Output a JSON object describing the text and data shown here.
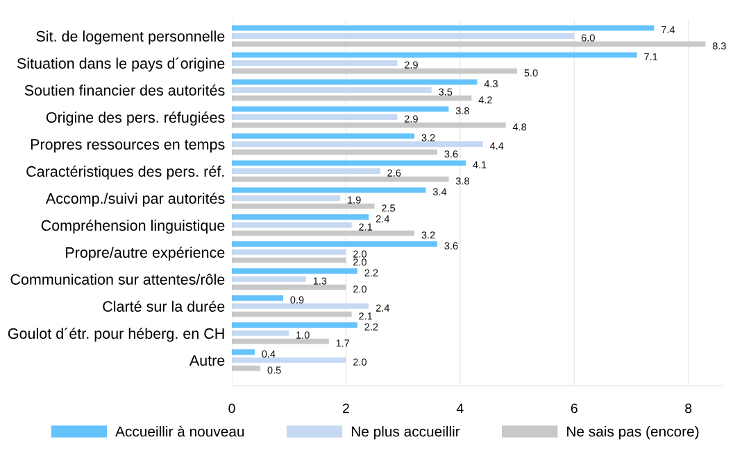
{
  "chart_data": {
    "type": "bar",
    "orientation": "horizontal",
    "categories": [
      "Sit. de logement personnelle",
      "Situation dans le pays d´origine",
      "Soutien financier des autorités",
      "Origine des pers. réfugiées",
      "Propres ressources en temps",
      "Caractéristiques des pers. réf.",
      "Accomp./suivi par autorités",
      "Compréhension linguistique",
      "Propre/autre expérience",
      "Communication sur attentes/rôle",
      "Clarté sur la durée",
      "Goulot d´étr. pour héberg. en CH",
      "Autre"
    ],
    "series": [
      {
        "name": "Accueillir à nouveau",
        "color": "#65c3fb",
        "values": [
          7.4,
          7.1,
          4.3,
          3.8,
          3.2,
          4.1,
          3.4,
          2.4,
          3.6,
          2.2,
          0.9,
          2.2,
          0.4
        ],
        "value_labels": [
          "7.4",
          "7.1",
          "4.3",
          "3.8",
          "3.2",
          "4.1",
          "3.4",
          "2.4",
          "3.6",
          "2.2",
          "0.9",
          "2.2",
          "0.4"
        ]
      },
      {
        "name": "Ne plus accueillir",
        "color": "#c6d9f2",
        "values": [
          6.0,
          2.9,
          3.5,
          2.9,
          4.4,
          2.6,
          1.9,
          2.1,
          2.0,
          1.3,
          2.4,
          1.0,
          2.0
        ],
        "value_labels": [
          "6.0",
          "2.9",
          "3.5",
          "2.9",
          "4.4",
          "2.6",
          "1.9",
          "2.1",
          "2.0",
          "1.3",
          "2.4",
          "1.0",
          "2.0"
        ]
      },
      {
        "name": "Ne sais pas (encore)",
        "color": "#c8c8c9",
        "values": [
          8.3,
          5.0,
          4.2,
          4.8,
          3.6,
          3.8,
          2.5,
          3.2,
          2.0,
          2.0,
          2.1,
          1.7,
          0.5
        ],
        "value_labels": [
          "8.3",
          "5.0",
          "4.2",
          "4.8",
          "3.6",
          "3.8",
          "2.5",
          "3.2",
          "2.0",
          "2.0",
          "2.1",
          "1.7",
          "0.5"
        ]
      }
    ],
    "xlim": [
      0,
      8.6
    ],
    "xticks": [
      0,
      2,
      4,
      6,
      8
    ],
    "grid": "x",
    "legend": "bottom"
  }
}
